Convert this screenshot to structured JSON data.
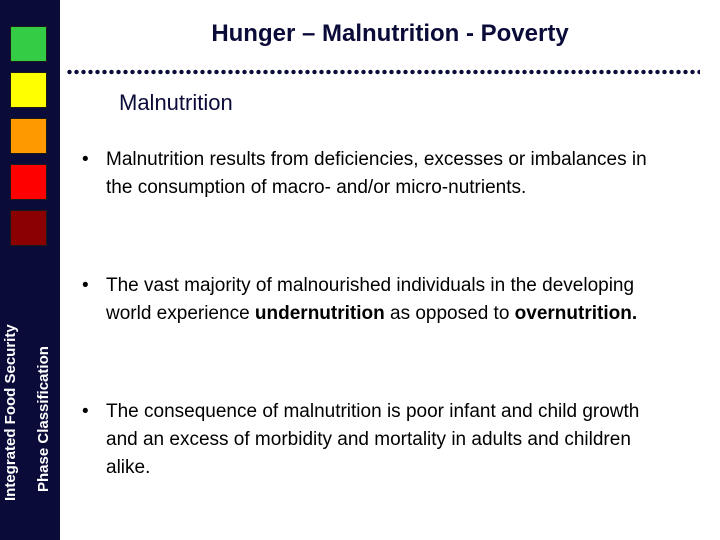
{
  "header": {
    "title": "Hunger – Malnutrition - Poverty",
    "subtitle": "Malnutrition"
  },
  "sidebar": {
    "label_line1": "Integrated Food Security",
    "label_line2": "Phase Classification",
    "swatch_colors": [
      "#33cc44",
      "#ffff00",
      "#ff9900",
      "#ff0000",
      "#8b0000"
    ]
  },
  "bullets": {
    "bullet_char": "•",
    "b1": "Malnutrition results from deficiencies, excesses or imbalances in the consumption of macro- and/or micro-nutrients.",
    "b2_part1": "The vast majority of malnourished individuals in the developing world experience ",
    "b2_bold1": "undernutrition",
    "b2_part2": " as opposed to ",
    "b2_bold2": "overnutrition.",
    "b3": "The consequence of malnutrition is poor infant and child growth and an excess of morbidity and mortality in adults and children alike."
  }
}
